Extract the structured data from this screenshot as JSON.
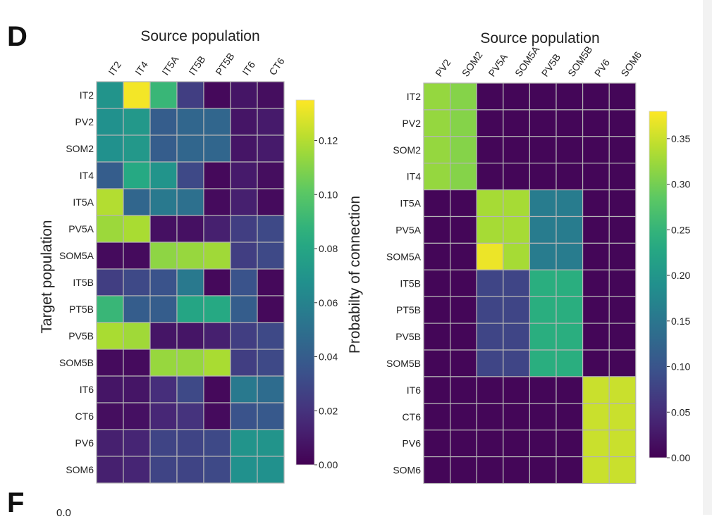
{
  "panel_labels": {
    "top": "D",
    "bottom": "F",
    "bottom_fragment": "0.0"
  },
  "chart_data": [
    {
      "type": "heatmap",
      "title": "",
      "xlabel": "Source population",
      "ylabel": "Target population",
      "colorbar_label": "Probabilty of connection",
      "colormap": "viridis",
      "vmin": 0,
      "vmax": 0.135,
      "colorbar_ticks": [
        "0.00",
        "0.02",
        "0.04",
        "0.06",
        "0.08",
        "0.10",
        "0.12"
      ],
      "colorbar_tick_values": [
        0,
        0.02,
        0.04,
        0.06,
        0.08,
        0.1,
        0.12
      ],
      "x": [
        "IT2",
        "IT4",
        "IT5A",
        "IT5B",
        "PT5B",
        "IT6",
        "CT6"
      ],
      "y": [
        "IT2",
        "PV2",
        "SOM2",
        "IT4",
        "IT5A",
        "PV5A",
        "SOM5A",
        "IT5B",
        "PT5B",
        "PV5B",
        "SOM5B",
        "IT6",
        "CT6",
        "PV6",
        "SOM6"
      ],
      "values": [
        [
          0.07,
          0.133,
          0.09,
          0.025,
          0.003,
          0.008,
          0.005
        ],
        [
          0.068,
          0.072,
          0.04,
          0.045,
          0.045,
          0.008,
          0.01
        ],
        [
          0.068,
          0.072,
          0.04,
          0.045,
          0.045,
          0.008,
          0.01
        ],
        [
          0.04,
          0.082,
          0.07,
          0.03,
          0.003,
          0.01,
          0.005
        ],
        [
          0.12,
          0.045,
          0.055,
          0.05,
          0.004,
          0.012,
          0.004
        ],
        [
          0.115,
          0.118,
          0.006,
          0.006,
          0.012,
          0.025,
          0.03
        ],
        [
          0.004,
          0.004,
          0.112,
          0.114,
          0.116,
          0.025,
          0.03
        ],
        [
          0.025,
          0.03,
          0.035,
          0.055,
          0.003,
          0.035,
          0.003
        ],
        [
          0.09,
          0.04,
          0.04,
          0.08,
          0.082,
          0.04,
          0.003
        ],
        [
          0.118,
          0.116,
          0.008,
          0.008,
          0.012,
          0.025,
          0.03
        ],
        [
          0.004,
          0.004,
          0.114,
          0.114,
          0.118,
          0.025,
          0.03
        ],
        [
          0.008,
          0.008,
          0.018,
          0.03,
          0.003,
          0.055,
          0.048
        ],
        [
          0.005,
          0.006,
          0.015,
          0.02,
          0.004,
          0.035,
          0.038
        ],
        [
          0.012,
          0.014,
          0.028,
          0.028,
          0.03,
          0.07,
          0.07
        ],
        [
          0.012,
          0.014,
          0.028,
          0.028,
          0.03,
          0.068,
          0.068
        ]
      ]
    },
    {
      "type": "heatmap",
      "title": "",
      "xlabel": "Source population",
      "ylabel": "",
      "colorbar_label": "",
      "colormap": "viridis",
      "vmin": 0,
      "vmax": 0.38,
      "colorbar_ticks": [
        "0.00",
        "0.05",
        "0.10",
        "0.15",
        "0.20",
        "0.25",
        "0.30",
        "0.35"
      ],
      "colorbar_tick_values": [
        0,
        0.05,
        0.1,
        0.15,
        0.2,
        0.25,
        0.3,
        0.35
      ],
      "x": [
        "PV2",
        "SOM2",
        "PV5A",
        "SOM5A",
        "PV5B",
        "SOM5B",
        "PV6",
        "SOM6"
      ],
      "y": [
        "IT2",
        "PV2",
        "SOM2",
        "IT4",
        "IT5A",
        "PV5A",
        "SOM5A",
        "IT5B",
        "PT5B",
        "PV5B",
        "SOM5B",
        "IT6",
        "CT6",
        "PV6",
        "SOM6"
      ],
      "values": [
        [
          0.32,
          0.31,
          0.005,
          0.005,
          0.005,
          0.005,
          0.005,
          0.005
        ],
        [
          0.32,
          0.31,
          0.005,
          0.005,
          0.005,
          0.005,
          0.005,
          0.005
        ],
        [
          0.32,
          0.31,
          0.005,
          0.005,
          0.005,
          0.005,
          0.005,
          0.005
        ],
        [
          0.32,
          0.31,
          0.005,
          0.005,
          0.005,
          0.005,
          0.005,
          0.005
        ],
        [
          0.005,
          0.005,
          0.33,
          0.33,
          0.16,
          0.16,
          0.005,
          0.005
        ],
        [
          0.005,
          0.005,
          0.33,
          0.33,
          0.16,
          0.16,
          0.005,
          0.005
        ],
        [
          0.005,
          0.005,
          0.37,
          0.33,
          0.16,
          0.16,
          0.005,
          0.005
        ],
        [
          0.005,
          0.005,
          0.08,
          0.08,
          0.24,
          0.24,
          0.005,
          0.005
        ],
        [
          0.005,
          0.005,
          0.08,
          0.08,
          0.24,
          0.24,
          0.005,
          0.005
        ],
        [
          0.005,
          0.005,
          0.08,
          0.08,
          0.24,
          0.24,
          0.005,
          0.005
        ],
        [
          0.005,
          0.005,
          0.08,
          0.08,
          0.24,
          0.24,
          0.005,
          0.005
        ],
        [
          0.005,
          0.005,
          0.005,
          0.005,
          0.005,
          0.005,
          0.35,
          0.35
        ],
        [
          0.005,
          0.005,
          0.005,
          0.005,
          0.005,
          0.005,
          0.35,
          0.35
        ],
        [
          0.005,
          0.005,
          0.005,
          0.005,
          0.005,
          0.005,
          0.35,
          0.35
        ],
        [
          0.005,
          0.005,
          0.005,
          0.005,
          0.005,
          0.005,
          0.35,
          0.35
        ]
      ]
    }
  ]
}
